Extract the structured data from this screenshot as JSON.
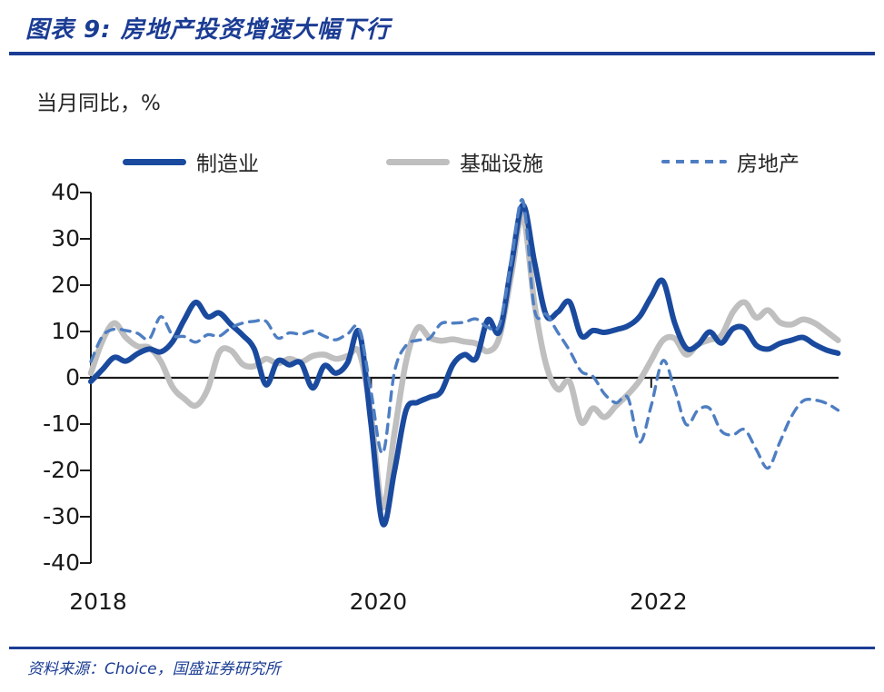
{
  "header": {
    "title": "图表 9:  房地产投资增速大幅下行"
  },
  "axis_note": "当月同比，%",
  "footer": {
    "source": "资料来源：Choice，国盛证券研究所"
  },
  "theme": {
    "accent_blue": "#1B3C94",
    "manufacturing_blue": "#1A4A9E",
    "infrastructure_gray": "#BFBFBF",
    "real_estate_blue": "#4E7EC2"
  },
  "chart_data": {
    "type": "line",
    "title": "图表 9:  房地产投资增速大幅下行",
    "xlabel": "",
    "ylabel": "当月同比，%",
    "ylim": [
      -40,
      40
    ],
    "grid": false,
    "legend_position": "top",
    "yticks": [
      40,
      30,
      20,
      10,
      0,
      -10,
      -20,
      -30,
      -40
    ],
    "x_ticks": [
      {
        "label": "2018",
        "index": 0
      },
      {
        "label": "2020",
        "index": 24
      },
      {
        "label": "2022",
        "index": 48
      }
    ],
    "months": [
      "2018-01",
      "2018-02",
      "2018-03",
      "2018-04",
      "2018-05",
      "2018-06",
      "2018-07",
      "2018-08",
      "2018-09",
      "2018-10",
      "2018-11",
      "2018-12",
      "2019-01",
      "2019-02",
      "2019-03",
      "2019-04",
      "2019-05",
      "2019-06",
      "2019-07",
      "2019-08",
      "2019-09",
      "2019-10",
      "2019-11",
      "2019-12",
      "2020-01",
      "2020-02",
      "2020-03",
      "2020-04",
      "2020-05",
      "2020-06",
      "2020-07",
      "2020-08",
      "2020-09",
      "2020-10",
      "2020-11",
      "2020-12",
      "2021-01",
      "2021-02",
      "2021-03",
      "2021-04",
      "2021-05",
      "2021-06",
      "2021-07",
      "2021-08",
      "2021-09",
      "2021-10",
      "2021-11",
      "2021-12",
      "2022-01",
      "2022-02",
      "2022-03",
      "2022-04",
      "2022-05",
      "2022-06",
      "2022-07",
      "2022-08",
      "2022-09",
      "2022-10",
      "2022-11",
      "2022-12",
      "2023-01",
      "2023-02",
      "2023-03",
      "2023-04",
      "2023-05"
    ],
    "series": [
      {
        "key": "manufacturing",
        "name": "制造业",
        "color": "#1A4A9E",
        "style": "solid",
        "width": 6,
        "values": [
          -0.8,
          1.8,
          4.4,
          3.6,
          5.2,
          6.2,
          5.6,
          7.8,
          12.5,
          16.3,
          13.2,
          14.0,
          11.5,
          9.2,
          6.2,
          -1.5,
          3.6,
          2.8,
          3.2,
          -2.2,
          2.6,
          1.0,
          3.3,
          9.8,
          -10.0,
          -31.5,
          -20.2,
          -7.0,
          -5.3,
          -4.2,
          -3.0,
          2.8,
          5.0,
          4.2,
          12.5,
          10.0,
          24.0,
          37.3,
          25.0,
          13.5,
          14.2,
          16.4,
          9.1,
          10.2,
          9.8,
          10.4,
          11.2,
          13.2,
          17.5,
          20.9,
          11.9,
          6.4,
          7.1,
          9.9,
          7.5,
          10.6,
          10.7,
          7.0,
          6.2,
          7.4,
          8.1,
          8.7,
          7.2,
          6.0,
          5.3
        ]
      },
      {
        "key": "infrastructure",
        "name": "基础设施",
        "color": "#BFBFBF",
        "style": "solid",
        "width": 6.5,
        "values": [
          1.0,
          8.0,
          11.8,
          8.7,
          6.8,
          6.5,
          3.5,
          -2.0,
          -4.5,
          -6.0,
          -2.5,
          5.5,
          5.9,
          2.9,
          2.5,
          4.1,
          3.1,
          4.1,
          3.4,
          4.7,
          5.0,
          4.1,
          4.7,
          5.4,
          -8.0,
          -28.0,
          -12.0,
          3.5,
          10.8,
          8.7,
          8.0,
          8.3,
          7.8,
          7.4,
          5.7,
          8.8,
          22.0,
          35.0,
          16.0,
          2.8,
          -2.5,
          -0.8,
          -9.6,
          -6.6,
          -8.5,
          -6.0,
          -3.6,
          -0.6,
          3.8,
          8.1,
          8.5,
          5.0,
          7.2,
          8.2,
          9.1,
          14.2,
          16.3,
          13.0,
          14.6,
          12.0,
          11.5,
          12.6,
          11.8,
          10.0,
          8.1
        ]
      },
      {
        "key": "real-estate",
        "name": "房地产",
        "color": "#4E7EC2",
        "style": "dashed",
        "width": 3.4,
        "values": [
          3.5,
          9.0,
          10.5,
          10.2,
          9.6,
          8.4,
          13.2,
          9.2,
          8.9,
          7.7,
          9.3,
          9.0,
          10.8,
          11.8,
          12.2,
          12.2,
          8.6,
          9.7,
          9.4,
          10.1,
          9.0,
          8.2,
          9.5,
          10.5,
          -3.0,
          -16.3,
          1.2,
          7.0,
          8.1,
          8.5,
          11.7,
          11.8,
          12.0,
          12.7,
          10.9,
          11.5,
          25.0,
          38.3,
          14.7,
          13.7,
          9.8,
          5.9,
          1.4,
          0.3,
          -3.5,
          -5.4,
          -4.3,
          -13.9,
          -6.0,
          3.7,
          -2.4,
          -10.1,
          -7.0,
          -6.6,
          -11.5,
          -12.3,
          -11.2,
          -15.5,
          -19.5,
          -14.0,
          -8.4,
          -5.0,
          -4.8,
          -5.5,
          -7.0
        ]
      }
    ]
  }
}
